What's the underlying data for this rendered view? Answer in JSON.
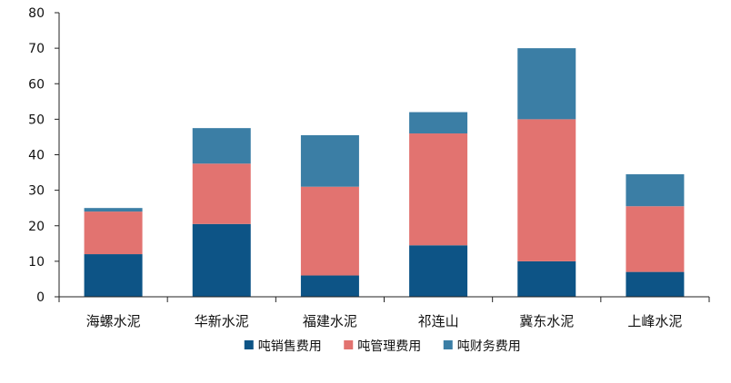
{
  "chart_data": {
    "type": "bar",
    "stacked": true,
    "categories": [
      "海螺水泥",
      "华新水泥",
      "福建水泥",
      "祁连山",
      "冀东水泥",
      "上峰水泥"
    ],
    "series": [
      {
        "name": "吨销售费用",
        "color": "#0d5486",
        "values": [
          12,
          20.5,
          6,
          14.5,
          10,
          7
        ]
      },
      {
        "name": "吨管理费用",
        "color": "#e27370",
        "values": [
          12,
          17,
          25,
          31.5,
          40,
          18.5
        ]
      },
      {
        "name": "吨财务费用",
        "color": "#3b7ea5",
        "values": [
          1,
          10,
          14.5,
          6,
          20,
          9
        ]
      }
    ],
    "ylim": [
      0,
      80
    ],
    "yticks": [
      0,
      10,
      20,
      30,
      40,
      50,
      60,
      70,
      80
    ],
    "legend": "bottom",
    "grid": false
  }
}
